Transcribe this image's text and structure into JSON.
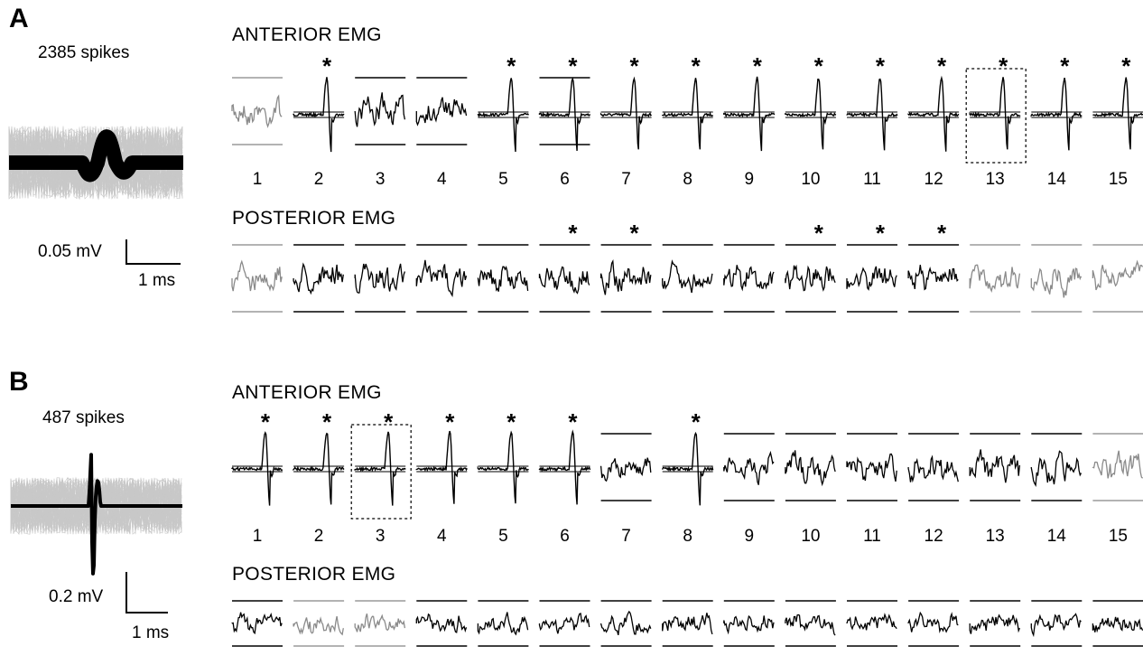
{
  "figure": {
    "panels": [
      {
        "letter": "A",
        "spike_count": "2385 spikes",
        "scale_voltage": "0.05 mV",
        "scale_time": "1 ms",
        "anterior": {
          "title": "ANTERIOR EMG",
          "channels": [
            "1",
            "2",
            "3",
            "4",
            "5",
            "6",
            "7",
            "8",
            "9",
            "10",
            "11",
            "12",
            "13",
            "14",
            "15"
          ],
          "significant": [
            false,
            true,
            false,
            false,
            true,
            true,
            true,
            true,
            true,
            true,
            true,
            true,
            true,
            true,
            true
          ],
          "gray": [
            true,
            false,
            false,
            false,
            false,
            false,
            false,
            false,
            false,
            false,
            false,
            false,
            false,
            false,
            false
          ],
          "highlighted": 13,
          "asterisk": "*"
        },
        "posterior": {
          "title": "POSTERIOR EMG",
          "significant": [
            false,
            false,
            false,
            false,
            false,
            true,
            true,
            false,
            false,
            true,
            true,
            true,
            false,
            false,
            false
          ],
          "gray": [
            true,
            false,
            false,
            false,
            false,
            false,
            false,
            false,
            false,
            false,
            false,
            false,
            true,
            true,
            true
          ],
          "asterisk": "*"
        }
      },
      {
        "letter": "B",
        "spike_count": "487 spikes",
        "scale_voltage": "0.2 mV",
        "scale_time": "1 ms",
        "anterior": {
          "title": "ANTERIOR EMG",
          "channels": [
            "1",
            "2",
            "3",
            "4",
            "5",
            "6",
            "7",
            "8",
            "9",
            "10",
            "11",
            "12",
            "13",
            "14",
            "15"
          ],
          "significant": [
            true,
            true,
            true,
            true,
            true,
            true,
            false,
            true,
            false,
            false,
            false,
            false,
            false,
            false,
            false
          ],
          "gray": [
            false,
            false,
            false,
            false,
            false,
            false,
            false,
            false,
            false,
            false,
            false,
            false,
            false,
            false,
            true
          ],
          "highlighted": 3,
          "asterisk": "*"
        },
        "posterior": {
          "title": "POSTERIOR EMG",
          "significant": [
            false,
            false,
            false,
            false,
            false,
            false,
            false,
            false,
            false,
            false,
            false,
            false,
            false,
            false,
            false
          ],
          "gray": [
            false,
            true,
            true,
            false,
            false,
            false,
            false,
            false,
            false,
            false,
            false,
            false,
            false,
            false,
            false
          ],
          "asterisk": "*"
        }
      }
    ]
  }
}
